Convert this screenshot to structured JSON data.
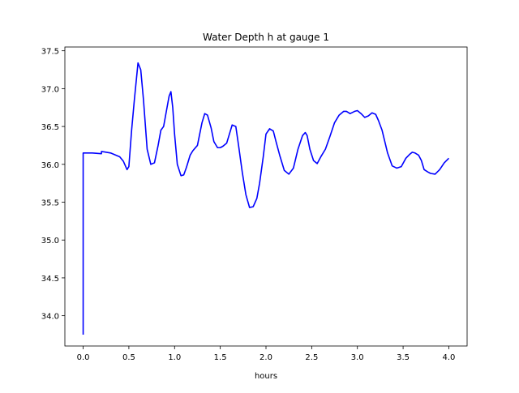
{
  "chart_data": {
    "type": "line",
    "title": "Water Depth h at gauge 1",
    "xlabel": "hours",
    "ylabel": "",
    "xlim": [
      -0.2,
      4.2
    ],
    "ylim": [
      33.6,
      37.55
    ],
    "x_ticks": [
      0.0,
      0.5,
      1.0,
      1.5,
      2.0,
      2.5,
      3.0,
      3.5,
      4.0
    ],
    "x_tick_labels": [
      "0.0",
      "0.5",
      "1.0",
      "1.5",
      "2.0",
      "2.5",
      "3.0",
      "3.5",
      "4.0"
    ],
    "y_ticks": [
      34.0,
      34.5,
      35.0,
      35.5,
      36.0,
      36.5,
      37.0,
      37.5
    ],
    "y_tick_labels": [
      "34.0",
      "34.5",
      "35.0",
      "35.5",
      "36.0",
      "36.5",
      "37.0",
      "37.5"
    ],
    "grid": false,
    "series": [
      {
        "color": "#0000ff",
        "x": [
          0.0,
          0.0,
          0.01,
          0.1,
          0.2,
          0.2,
          0.3,
          0.4,
          0.44,
          0.48,
          0.5,
          0.53,
          0.56,
          0.6,
          0.63,
          0.66,
          0.7,
          0.74,
          0.78,
          0.82,
          0.85,
          0.88,
          0.91,
          0.94,
          0.96,
          0.98,
          1.0,
          1.03,
          1.07,
          1.1,
          1.13,
          1.17,
          1.2,
          1.25,
          1.3,
          1.33,
          1.36,
          1.4,
          1.43,
          1.47,
          1.5,
          1.53,
          1.57,
          1.6,
          1.63,
          1.67,
          1.7,
          1.74,
          1.78,
          1.82,
          1.86,
          1.9,
          1.93,
          1.97,
          2.0,
          2.04,
          2.08,
          2.11,
          2.15,
          2.2,
          2.25,
          2.3,
          2.35,
          2.4,
          2.43,
          2.45,
          2.48,
          2.52,
          2.56,
          2.6,
          2.65,
          2.7,
          2.75,
          2.8,
          2.85,
          2.88,
          2.92,
          2.97,
          3.0,
          3.04,
          3.08,
          3.12,
          3.16,
          3.2,
          3.23,
          3.27,
          3.3,
          3.33,
          3.38,
          3.43,
          3.48,
          3.53,
          3.57,
          3.6,
          3.63,
          3.67,
          3.7,
          3.73,
          3.77,
          3.8,
          3.85,
          3.9,
          3.95,
          4.0
        ],
        "y": [
          33.75,
          36.15,
          36.15,
          36.15,
          36.14,
          36.17,
          36.15,
          36.1,
          36.04,
          35.93,
          35.97,
          36.45,
          36.85,
          37.34,
          37.25,
          36.85,
          36.2,
          36.0,
          36.02,
          36.25,
          36.45,
          36.5,
          36.7,
          36.9,
          36.96,
          36.75,
          36.4,
          36.0,
          35.85,
          35.86,
          35.96,
          36.12,
          36.18,
          36.25,
          36.55,
          36.67,
          36.65,
          36.48,
          36.3,
          36.22,
          36.22,
          36.24,
          36.28,
          36.4,
          36.52,
          36.5,
          36.25,
          35.9,
          35.6,
          35.43,
          35.44,
          35.55,
          35.75,
          36.1,
          36.4,
          36.47,
          36.44,
          36.3,
          36.12,
          35.92,
          35.87,
          35.95,
          36.2,
          36.38,
          36.42,
          36.38,
          36.2,
          36.05,
          36.01,
          36.1,
          36.2,
          36.37,
          36.55,
          36.65,
          36.7,
          36.7,
          36.67,
          36.7,
          36.71,
          36.67,
          36.62,
          36.64,
          36.68,
          36.66,
          36.58,
          36.45,
          36.3,
          36.15,
          35.98,
          35.95,
          35.97,
          36.08,
          36.13,
          36.16,
          36.15,
          36.12,
          36.05,
          35.93,
          35.9,
          35.88,
          35.87,
          35.93,
          36.02,
          36.08
        ]
      }
    ]
  }
}
